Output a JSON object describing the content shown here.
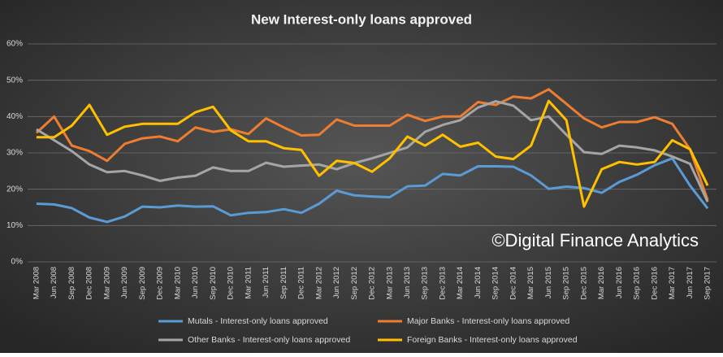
{
  "chart_data": {
    "type": "line",
    "title": "New Interest-only loans approved",
    "watermark": "©Digital Finance Analytics",
    "categories": [
      "Mar 2008",
      "Jun 2008",
      "Sep 2008",
      "Dec 2008",
      "Mar 2009",
      "Jun 2009",
      "Sep 2009",
      "Dec 2009",
      "Mar 2010",
      "Jun 2010",
      "Sep 2010",
      "Dec 2010",
      "Mar 2011",
      "Jun 2011",
      "Sep 2011",
      "Dec 2011",
      "Mar 2012",
      "Jun 2012",
      "Sep 2012",
      "Dec 2012",
      "Mar 2013",
      "Jun 2013",
      "Sep 2013",
      "Dec 2013",
      "Mar 2014",
      "Jun 2014",
      "Sep 2014",
      "Dec 2014",
      "Mar 2015",
      "Jun 2015",
      "Sep 2015",
      "Dec 2015",
      "Mar 2016",
      "Jun 2016",
      "Sep 2016",
      "Dec 2016",
      "Mar 2017",
      "Jun 2017",
      "Sep 2017"
    ],
    "series": [
      {
        "name": "Mutals - Interest-only loans approved",
        "color": "#5b9bd5",
        "values": [
          16,
          15.8,
          14.8,
          12.2,
          11,
          12.5,
          15.2,
          15,
          15.5,
          15.2,
          15.3,
          12.8,
          13.5,
          13.7,
          14.5,
          13.5,
          16,
          19.6,
          18.3,
          18,
          17.8,
          20.8,
          21,
          24.2,
          23.8,
          26.3,
          26.3,
          26.2,
          23.8,
          20.1,
          20.7,
          20.3,
          19,
          22,
          24,
          26.6,
          28.5,
          21,
          14.7
        ]
      },
      {
        "name": "Major Banks - Interest-only loans approved",
        "color": "#ed7d31",
        "values": [
          35.5,
          40,
          32,
          30.5,
          27.8,
          32.5,
          34,
          34.5,
          33.2,
          37,
          35.8,
          36.5,
          35.2,
          39.5,
          37,
          34.8,
          35,
          39.2,
          37.5,
          37.5,
          37.5,
          40.5,
          38.8,
          40,
          40,
          44,
          43.2,
          45.5,
          45,
          47.5,
          43.5,
          39.5,
          37,
          38.5,
          38.5,
          39.8,
          38,
          31,
          17
        ]
      },
      {
        "name": "Other Banks - Interest-only loans approved",
        "color": "#a5a5a5",
        "values": [
          36.5,
          33.5,
          30.5,
          26.8,
          24.7,
          25,
          23.8,
          22.3,
          23.2,
          23.7,
          26,
          25,
          25,
          27.3,
          26.2,
          26.5,
          26.8,
          25.5,
          27.2,
          28.5,
          30,
          31.5,
          35.8,
          37.7,
          39,
          42.5,
          44.2,
          43,
          39,
          40,
          35,
          30.2,
          29.7,
          32,
          31.5,
          30.7,
          29,
          27,
          16.5
        ]
      },
      {
        "name": "Foreign Banks - Interest-only loans approved",
        "color": "#ffc000",
        "values": [
          34.3,
          34.3,
          37.5,
          43.2,
          35,
          37.2,
          38,
          38,
          38,
          41.2,
          42.7,
          36.2,
          33.2,
          33.2,
          31.3,
          30.8,
          23.7,
          27.8,
          27.2,
          24.8,
          28.5,
          34.5,
          32,
          35,
          31.7,
          32.8,
          29,
          28.3,
          32,
          44.3,
          39,
          15.2,
          25.5,
          27.5,
          26.8,
          27.5,
          33.5,
          31,
          21
        ]
      }
    ],
    "ylim": [
      0,
      60
    ],
    "yticks": [
      {
        "value": 0,
        "label": "0%"
      },
      {
        "value": 10,
        "label": "10%"
      },
      {
        "value": 20,
        "label": "20%"
      },
      {
        "value": 30,
        "label": "30%"
      },
      {
        "value": 40,
        "label": "40%"
      },
      {
        "value": 50,
        "label": "50%"
      },
      {
        "value": 60,
        "label": "60%"
      }
    ],
    "grid": true
  }
}
